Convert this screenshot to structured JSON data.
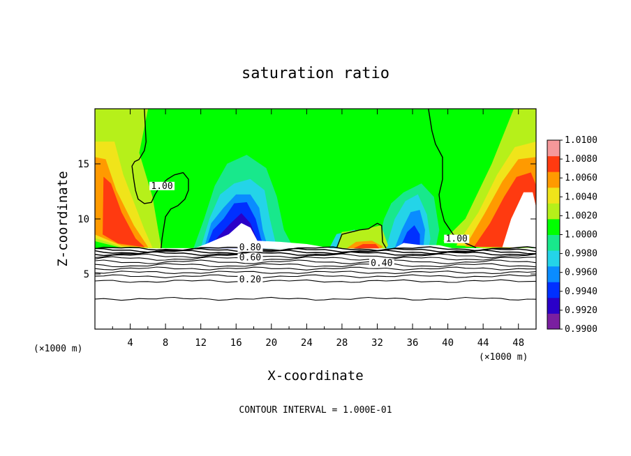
{
  "chart_data": {
    "type": "heatmap",
    "title": "saturation ratio",
    "xlabel": "X-coordinate",
    "ylabel": "Z-coordinate",
    "x_unit": "(×1000 m)",
    "z_unit": "(×1000 m)",
    "xlim": [
      0,
      50
    ],
    "ylim": [
      0,
      20
    ],
    "x_ticks": [
      4,
      8,
      12,
      16,
      20,
      24,
      28,
      32,
      36,
      40,
      44,
      48
    ],
    "x_tick_labels": [
      "4",
      "8",
      "12",
      "16",
      "20",
      "24",
      "28",
      "32",
      "36",
      "40",
      "44",
      "48"
    ],
    "y_ticks": [
      5,
      10,
      15
    ],
    "y_tick_labels": [
      "5",
      "10",
      "15"
    ],
    "colorbar": {
      "min": 0.99,
      "max": 1.01,
      "labels": [
        "1.0100",
        "1.0080",
        "1.0060",
        "1.0040",
        "1.0020",
        "1.0000",
        "0.9980",
        "0.9960",
        "0.9940",
        "0.9920",
        "0.9900"
      ],
      "colors": [
        "#7a1fa0",
        "#2a00c8",
        "#0030ff",
        "#0a8cff",
        "#24d4e8",
        "#18e88c",
        "#00ff00",
        "#b6f01a",
        "#f0e41a",
        "#ff9a00",
        "#ff3a10",
        "#f5989a"
      ]
    },
    "contour_labels": [
      {
        "text": "1.00",
        "x": 7.6,
        "z": 12.8
      },
      {
        "text": "1.00",
        "x": 41.0,
        "z": 8.0
      },
      {
        "text": "0.80",
        "x": 17.6,
        "z": 7.2
      },
      {
        "text": "0.60",
        "x": 17.6,
        "z": 6.3
      },
      {
        "text": "0.40",
        "x": 32.5,
        "z": 5.8
      },
      {
        "text": "0.20",
        "x": 17.6,
        "z": 4.3
      }
    ],
    "footer": "CONTOUR INTERVAL = 1.000E-01"
  }
}
